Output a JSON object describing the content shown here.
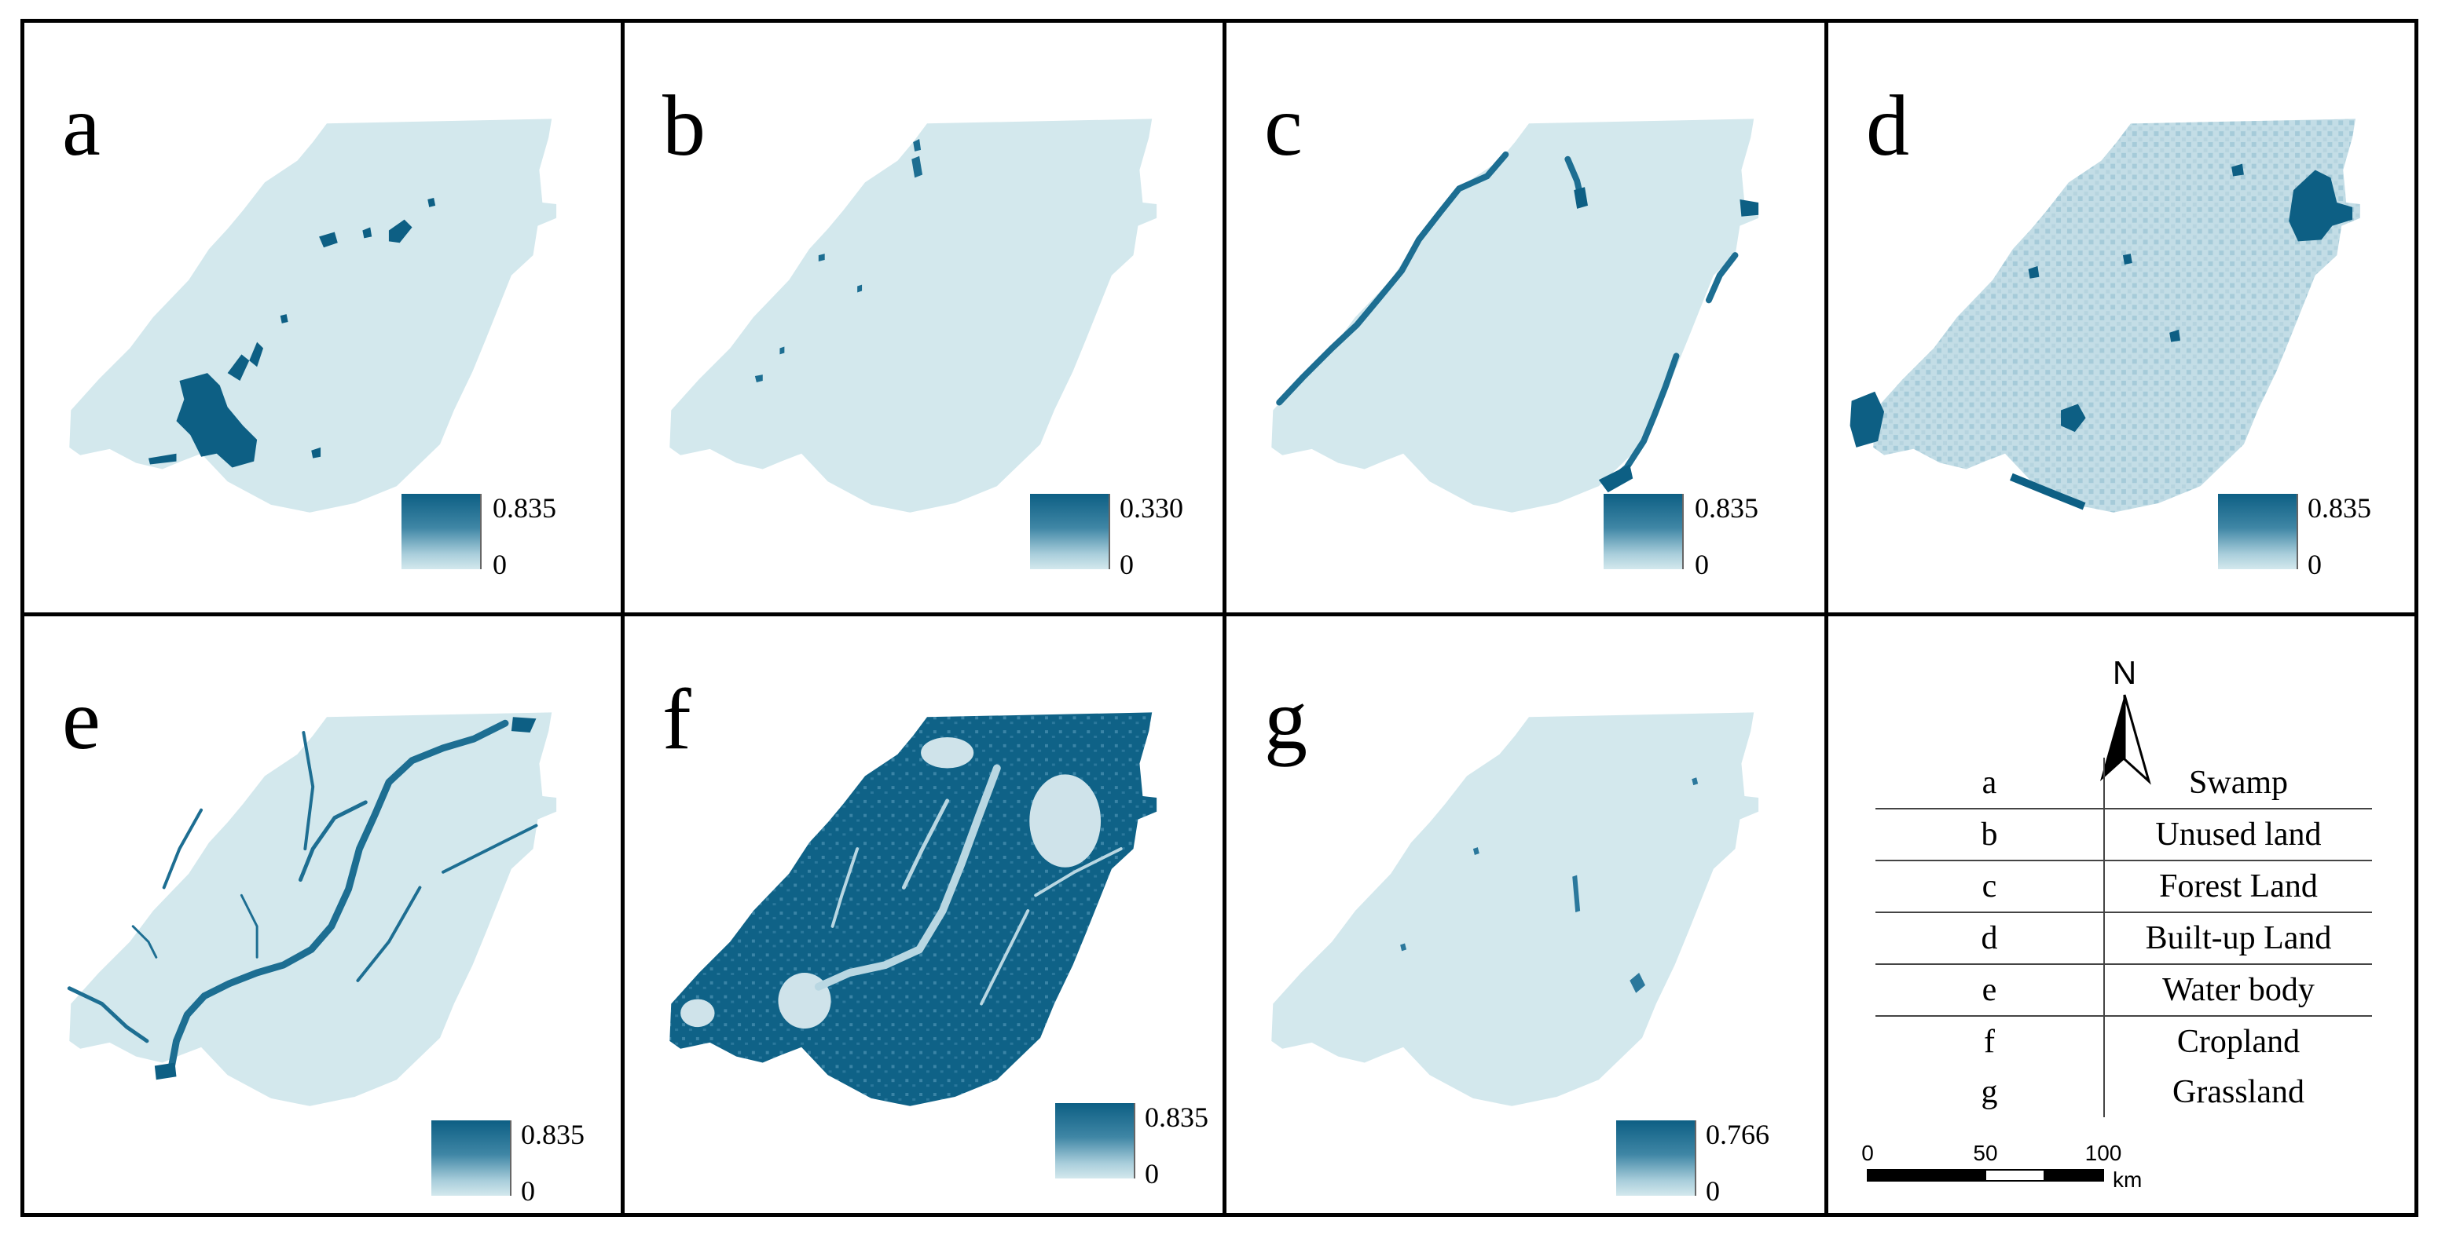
{
  "panels": [
    {
      "id": "a",
      "max_label": "0.835",
      "min_label": "0"
    },
    {
      "id": "b",
      "max_label": "0.330",
      "min_label": "0"
    },
    {
      "id": "c",
      "max_label": "0.835",
      "min_label": "0"
    },
    {
      "id": "d",
      "max_label": "0.835",
      "min_label": "0"
    },
    {
      "id": "e",
      "max_label": "0.835",
      "min_label": "0"
    },
    {
      "id": "f",
      "max_label": "0.835",
      "min_label": "0"
    },
    {
      "id": "g",
      "max_label": "0.766",
      "min_label": "0"
    }
  ],
  "legend": {
    "north_label": "N",
    "entries": [
      {
        "code": "a",
        "name": "Swamp"
      },
      {
        "code": "b",
        "name": "Unused land"
      },
      {
        "code": "c",
        "name": "Forest Land"
      },
      {
        "code": "d",
        "name": "Built-up Land"
      },
      {
        "code": "e",
        "name": "Water body"
      },
      {
        "code": "f",
        "name": "Cropland"
      },
      {
        "code": "g",
        "name": "Grassland"
      }
    ]
  },
  "scale_bar": {
    "labels": [
      "0",
      "50",
      "100"
    ],
    "unit": "km"
  },
  "colors": {
    "low": "#d3e8ed",
    "high": "#0d5f84",
    "frame": "#000000"
  }
}
